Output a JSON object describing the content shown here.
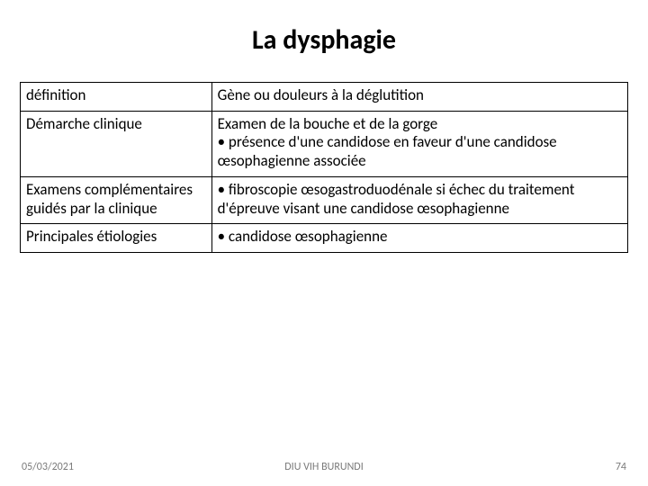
{
  "title": "La dysphagie",
  "table": {
    "rows": [
      {
        "label": "définition",
        "lines": [
          "Gène ou douleurs à la déglutition"
        ]
      },
      {
        "label": "Démarche clinique",
        "lines": [
          "Examen de la bouche et de la gorge",
          "• présence d'une candidose en faveur d'une candidose œsophagienne associée"
        ]
      },
      {
        "label": "Examens complémentaires guidés par la clinique",
        "lines": [
          "• fibroscopie œsogastroduodénale  si échec du traitement d'épreuve visant une candidose œsophagienne"
        ]
      },
      {
        "label": "Principales étiologies",
        "lines": [
          "• candidose œsophagienne"
        ]
      }
    ],
    "col_widths_pct": [
      31.5,
      68.5
    ],
    "border_color": "#000000",
    "font_size_pt": 17
  },
  "footer": {
    "date": "05/03/2021",
    "center": "DIU VIH BURUNDI",
    "page": "74"
  },
  "colors": {
    "background": "#ffffff",
    "text": "#000000",
    "footer_text": "#7a7a7a"
  }
}
